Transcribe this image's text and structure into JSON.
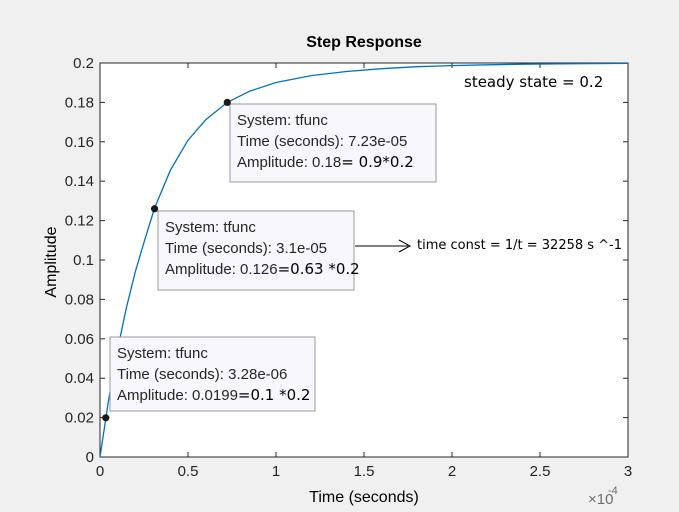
{
  "chart_data": {
    "type": "line",
    "title": "Step Response",
    "xlabel": "Time (seconds)",
    "ylabel": "Amplitude",
    "x_exponent_label": "×10",
    "x_exponent_value": "-4",
    "xlim": [
      0,
      3
    ],
    "ylim": [
      0,
      0.2
    ],
    "x_ticks": [
      "0",
      "0.5",
      "1",
      "1.5",
      "2",
      "2.5",
      "3"
    ],
    "y_ticks": [
      "0",
      "0.02",
      "0.04",
      "0.06",
      "0.08",
      "0.1",
      "0.12",
      "0.14",
      "0.16",
      "0.18",
      "0.2"
    ],
    "series": [
      {
        "color": "#0072bd",
        "x": [
          0,
          0.05,
          0.1,
          0.15,
          0.2,
          0.25,
          0.31,
          0.4,
          0.5,
          0.6,
          0.723,
          0.85,
          1.0,
          1.2,
          1.4,
          1.6,
          1.8,
          2.0,
          2.2,
          2.4,
          2.6,
          2.8,
          3.0
        ],
        "y": [
          0,
          0.0296,
          0.0546,
          0.0758,
          0.0938,
          0.109,
          0.1264,
          0.1456,
          0.1608,
          0.1711,
          0.18,
          0.1857,
          0.1901,
          0.1936,
          0.1957,
          0.1971,
          0.1981,
          0.1987,
          0.1991,
          0.1994,
          0.1996,
          0.1997,
          0.1998
        ]
      }
    ],
    "datatips": [
      {
        "x": 0.0328,
        "y": 0.0199,
        "line1": "System: tfunc",
        "line2": "Time (seconds): 3.28e-06",
        "line3": "Amplitude: 0.0199",
        "note": "=0.1 *0.2"
      },
      {
        "x": 0.31,
        "y": 0.126,
        "line1": "System: tfunc",
        "line2": "Time (seconds): 3.1e-05",
        "line3": "Amplitude: 0.126",
        "note": "=0.63 *0.2"
      },
      {
        "x": 0.723,
        "y": 0.18,
        "line1": "System: tfunc",
        "line2": "Time (seconds): 7.23e-05",
        "line3": "Amplitude: 0.18",
        "note": "= 0.9*0.2"
      }
    ],
    "annotations": {
      "steady_state": "steady state = 0.2",
      "time_const": "time const = 1/t = 32258 s ^-1"
    },
    "grid": false
  }
}
